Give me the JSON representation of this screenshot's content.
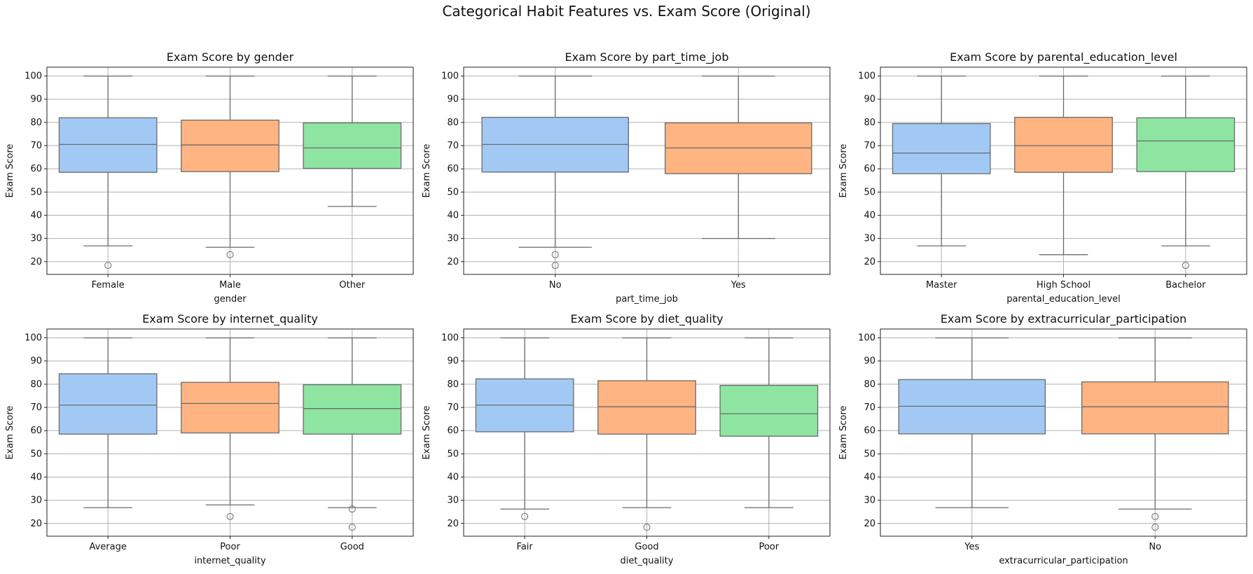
{
  "figure": {
    "title": "Categorical Habit Features vs. Exam Score (Original)"
  },
  "chart_data": [
    {
      "type": "boxplot",
      "title": "Exam Score by gender",
      "xlabel": "gender",
      "ylabel": "Exam Score",
      "ylim": [
        14.5,
        103.8
      ],
      "yticks": [
        20,
        30,
        40,
        50,
        60,
        70,
        80,
        90,
        100
      ],
      "grid": true,
      "categories": [
        "Female",
        "Male",
        "Other"
      ],
      "boxes": [
        {
          "whisker_low": 26.8,
          "q1": 58.5,
          "median": 70.5,
          "q3": 82,
          "whisker_high": 100,
          "outliers": [
            18.4
          ],
          "color": "#a1c9f4"
        },
        {
          "whisker_low": 26.2,
          "q1": 58.8,
          "median": 70.3,
          "q3": 81,
          "whisker_high": 100,
          "outliers": [
            23
          ],
          "color": "#ffb482"
        },
        {
          "whisker_low": 43.8,
          "q1": 60.2,
          "median": 69,
          "q3": 79.8,
          "whisker_high": 100,
          "outliers": [],
          "color": "#8de5a1"
        }
      ]
    },
    {
      "type": "boxplot",
      "title": "Exam Score by part_time_job",
      "xlabel": "part_time_job",
      "ylabel": "Exam Score",
      "ylim": [
        14.5,
        103.8
      ],
      "yticks": [
        20,
        30,
        40,
        50,
        60,
        70,
        80,
        90,
        100
      ],
      "grid": true,
      "categories": [
        "No",
        "Yes"
      ],
      "boxes": [
        {
          "whisker_low": 26.2,
          "q1": 58.6,
          "median": 70.5,
          "q3": 82.2,
          "whisker_high": 100,
          "outliers": [
            23,
            18.4
          ],
          "color": "#a1c9f4"
        },
        {
          "whisker_low": 30,
          "q1": 57.9,
          "median": 69,
          "q3": 79.8,
          "whisker_high": 100,
          "outliers": [],
          "color": "#ffb482"
        }
      ]
    },
    {
      "type": "boxplot",
      "title": "Exam Score by parental_education_level",
      "xlabel": "parental_education_level",
      "ylabel": "Exam Score",
      "ylim": [
        14.5,
        103.8
      ],
      "yticks": [
        20,
        30,
        40,
        50,
        60,
        70,
        80,
        90,
        100
      ],
      "grid": true,
      "categories": [
        "Master",
        "High School",
        "Bachelor"
      ],
      "boxes": [
        {
          "whisker_low": 26.8,
          "q1": 57.9,
          "median": 66.8,
          "q3": 79.5,
          "whisker_high": 100,
          "outliers": [],
          "color": "#a1c9f4"
        },
        {
          "whisker_low": 23,
          "q1": 58.5,
          "median": 70,
          "q3": 82.2,
          "whisker_high": 100,
          "outliers": [],
          "color": "#ffb482"
        },
        {
          "whisker_low": 26.8,
          "q1": 58.8,
          "median": 72,
          "q3": 82,
          "whisker_high": 100,
          "outliers": [
            18.4
          ],
          "color": "#8de5a1"
        }
      ]
    },
    {
      "type": "boxplot",
      "title": "Exam Score by internet_quality",
      "xlabel": "internet_quality",
      "ylabel": "Exam Score",
      "ylim": [
        14.5,
        103.8
      ],
      "yticks": [
        20,
        30,
        40,
        50,
        60,
        70,
        80,
        90,
        100
      ],
      "grid": true,
      "categories": [
        "Average",
        "Poor",
        "Good"
      ],
      "boxes": [
        {
          "whisker_low": 26.8,
          "q1": 58.5,
          "median": 71,
          "q3": 84.5,
          "whisker_high": 100,
          "outliers": [],
          "color": "#a1c9f4"
        },
        {
          "whisker_low": 28,
          "q1": 59,
          "median": 71.7,
          "q3": 80.8,
          "whisker_high": 100,
          "outliers": [
            23
          ],
          "color": "#ffb482"
        },
        {
          "whisker_low": 26.8,
          "q1": 58.5,
          "median": 69.5,
          "q3": 79.8,
          "whisker_high": 100,
          "outliers": [
            26.2,
            18.4
          ],
          "color": "#8de5a1"
        }
      ]
    },
    {
      "type": "boxplot",
      "title": "Exam Score by diet_quality",
      "xlabel": "diet_quality",
      "ylabel": "Exam Score",
      "ylim": [
        14.5,
        103.8
      ],
      "yticks": [
        20,
        30,
        40,
        50,
        60,
        70,
        80,
        90,
        100
      ],
      "grid": true,
      "categories": [
        "Fair",
        "Good",
        "Poor"
      ],
      "boxes": [
        {
          "whisker_low": 26.2,
          "q1": 59.5,
          "median": 71,
          "q3": 82.3,
          "whisker_high": 100,
          "outliers": [
            23
          ],
          "color": "#a1c9f4"
        },
        {
          "whisker_low": 26.8,
          "q1": 58.5,
          "median": 70.3,
          "q3": 81.5,
          "whisker_high": 100,
          "outliers": [
            18.4
          ],
          "color": "#ffb482"
        },
        {
          "whisker_low": 26.8,
          "q1": 57.6,
          "median": 67.3,
          "q3": 79.5,
          "whisker_high": 100,
          "outliers": [],
          "color": "#8de5a1"
        }
      ]
    },
    {
      "type": "boxplot",
      "title": "Exam Score by extracurricular_participation",
      "xlabel": "extracurricular_participation",
      "ylabel": "Exam Score",
      "ylim": [
        14.5,
        103.8
      ],
      "yticks": [
        20,
        30,
        40,
        50,
        60,
        70,
        80,
        90,
        100
      ],
      "grid": true,
      "categories": [
        "Yes",
        "No"
      ],
      "boxes": [
        {
          "whisker_low": 26.8,
          "q1": 58.6,
          "median": 70.5,
          "q3": 82,
          "whisker_high": 100,
          "outliers": [],
          "color": "#a1c9f4"
        },
        {
          "whisker_low": 26.2,
          "q1": 58.6,
          "median": 70.3,
          "q3": 81,
          "whisker_high": 100,
          "outliers": [
            23,
            18.4
          ],
          "color": "#ffb482"
        }
      ]
    }
  ]
}
